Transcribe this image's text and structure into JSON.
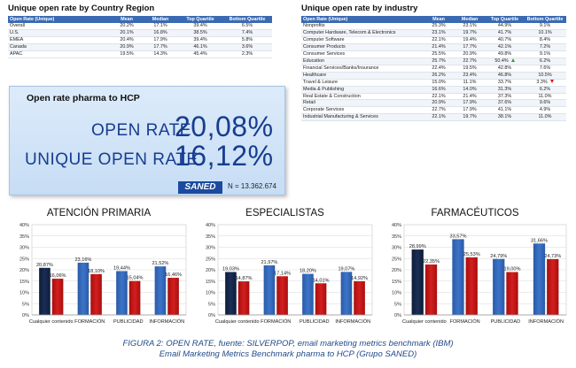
{
  "country_table": {
    "title": "Unique open rate by Country  Region",
    "headers": [
      "Open Rate (Unique)",
      "Mean",
      "Median",
      "Top Quartile",
      "Bottom Quartile"
    ],
    "rows": [
      [
        "Overall",
        "20.2%",
        "17.1%",
        "39.4%",
        "6.5%"
      ],
      [
        "U.S.",
        "20.1%",
        "16.8%",
        "38.5%",
        "7.4%"
      ],
      [
        "EMEA",
        "20.4%",
        "17.9%",
        "39.4%",
        "5.8%"
      ],
      [
        "Canada",
        "20.9%",
        "17.7%",
        "46.1%",
        "3.6%"
      ],
      [
        "APAC",
        "19.5%",
        "14.3%",
        "45.4%",
        "2.3%"
      ]
    ]
  },
  "industry_table": {
    "title": "Unique open rate by industry",
    "headers": [
      "Open Rate (Unique)",
      "Mean",
      "Median",
      "Top Quartile",
      "Bottom Quartile"
    ],
    "rows": [
      [
        "Nonprofits",
        "25.3%",
        "23.1%",
        "44.9%",
        "9.1%",
        ""
      ],
      [
        "Computer Hardware, Telecom & Electronics",
        "23.1%",
        "19.7%",
        "41.7%",
        "10.1%",
        ""
      ],
      [
        "Computer Software",
        "22.1%",
        "19.4%",
        "40.7%",
        "8.4%",
        ""
      ],
      [
        "Consumer Products",
        "21.4%",
        "17.7%",
        "42.1%",
        "7.2%",
        ""
      ],
      [
        "Consumer Services",
        "25.5%",
        "20.9%",
        "49.8%",
        "9.1%",
        ""
      ],
      [
        "Education",
        "25.7%",
        "22.7%",
        "50.4%",
        "6.2%",
        "up"
      ],
      [
        "Financial Services/Banks/Insurance",
        "22.4%",
        "19.5%",
        "42.8%",
        "7.6%",
        ""
      ],
      [
        "Healthcare",
        "26.2%",
        "23.4%",
        "46.8%",
        "10.5%",
        ""
      ],
      [
        "Travel & Leisure",
        "15.0%",
        "11.1%",
        "33.7%",
        "3.3%",
        "down"
      ],
      [
        "Media & Publishing",
        "16.6%",
        "14.0%",
        "31.3%",
        "6.2%",
        ""
      ],
      [
        "Real Estate & Construction",
        "22.1%",
        "21.4%",
        "37.3%",
        "11.0%",
        ""
      ],
      [
        "Retail",
        "20.9%",
        "17.9%",
        "37.6%",
        "9.6%",
        ""
      ],
      [
        "Corporate Services",
        "22.7%",
        "17.9%",
        "41.1%",
        "4.9%",
        ""
      ],
      [
        "Industrial Manufacturing & Services",
        "22.1%",
        "19.7%",
        "38.1%",
        "11.0%",
        ""
      ]
    ]
  },
  "pharma": {
    "title": "Open rate pharma to HCP",
    "open_rate_label": "OPEN RATE",
    "open_rate_value": "20,08%",
    "unique_label": "UNIQUE OPEN RATE",
    "unique_value": "16,12%",
    "logo_text": "SANED",
    "n_text": "N = 13.362.674"
  },
  "colors": {
    "dark_blue": "#1a2f56",
    "red": "#d41e1e",
    "blue": "#3c74c8",
    "header_blue": "#3a6ab2"
  },
  "chart_data": [
    {
      "type": "bar",
      "title": "ATENCIÓN PRIMARIA",
      "categories": [
        "Cualquier contenido",
        "FORMACIÓN",
        "PUBLICIDAD",
        "INFORMACIÓN"
      ],
      "series": [
        {
          "values": [
            20.87,
            23.16,
            19.44,
            21.52
          ]
        },
        {
          "values": [
            16.06,
            18.1,
            15.04,
            16.46
          ]
        }
      ],
      "labels": [
        [
          "20,87%",
          "23,16%",
          "19,44%",
          "21,52%"
        ],
        [
          "16,06%",
          "18,10%",
          "15,04%",
          "16,46%"
        ]
      ],
      "yticks": [
        "0%",
        "5%",
        "10%",
        "15%",
        "20%",
        "25%",
        "30%",
        "35%",
        "40%"
      ],
      "ylim": [
        0,
        40
      ]
    },
    {
      "type": "bar",
      "title": "ESPECIALISTAS",
      "categories": [
        "Cualquier contenido",
        "FORMACIÓN",
        "PUBLICIDAD",
        "INFORMACIÓN"
      ],
      "series": [
        {
          "values": [
            19.03,
            21.97,
            18.2,
            19.07
          ]
        },
        {
          "values": [
            14.87,
            17.14,
            14.01,
            14.92
          ]
        }
      ],
      "labels": [
        [
          "19,03%",
          "21,97%",
          "18,20%",
          "19,07%"
        ],
        [
          "14,87%",
          "17,14%",
          "14,01%",
          "14,92%"
        ]
      ],
      "yticks": [
        "0%",
        "5%",
        "10%",
        "15%",
        "20%",
        "25%",
        "30%",
        "35%",
        "40%"
      ],
      "ylim": [
        0,
        40
      ]
    },
    {
      "type": "bar",
      "title": "FARMACÉUTICOS",
      "categories": [
        "Cualquier contenido",
        "FORMACIÓN",
        "PUBLICIDAD",
        "INFORMACIÓN"
      ],
      "series": [
        {
          "values": [
            28.99,
            33.57,
            24.79,
            31.66
          ]
        },
        {
          "values": [
            22.35,
            25.53,
            19.0,
            24.73
          ]
        }
      ],
      "labels": [
        [
          "28,99%",
          "33,57%",
          "24,79%",
          "31,66%"
        ],
        [
          "22,35%",
          "25,53%",
          "19,00%",
          "24,73%"
        ]
      ],
      "yticks": [
        "0%",
        "5%",
        "10%",
        "15%",
        "20%",
        "25%",
        "30%",
        "35%",
        "40%"
      ],
      "ylim": [
        0,
        40
      ]
    }
  ],
  "caption": {
    "line1": "FIGURA 2: OPEN RATE, fuente:   SILVERPOP, email marketing metrics benchmark (IBM)",
    "line2": "Email Marketing Metrics Benchmark pharma to HCP (Grupo SANED)"
  }
}
